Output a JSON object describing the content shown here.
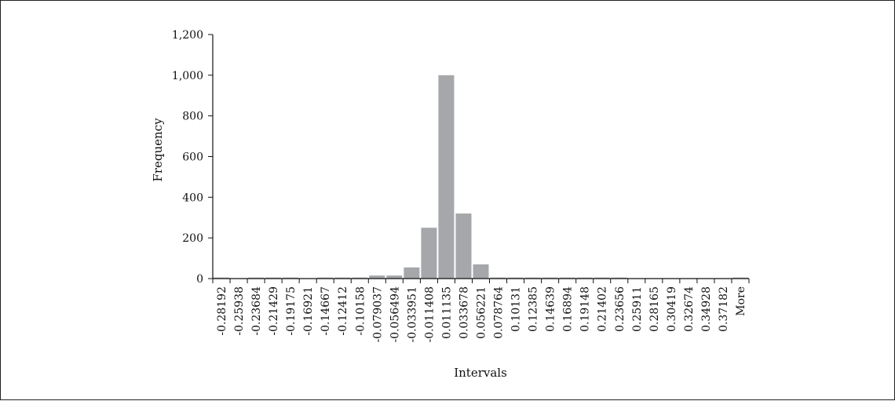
{
  "chart_data": {
    "type": "bar",
    "title": "",
    "xlabel": "Intervals",
    "ylabel": "Frequency",
    "ylim": [
      0,
      1200
    ],
    "yticks": [
      0,
      200,
      400,
      600,
      800,
      1000,
      1200
    ],
    "ytick_labels": [
      "0",
      "200",
      "400",
      "600",
      "800",
      "1,000",
      "1,200"
    ],
    "grid": false,
    "legend": "none",
    "categories": [
      "-0.28192",
      "-0.25938",
      "-0.23684",
      "-0.21429",
      "-0.19175",
      "-0.16921",
      "-0.14667",
      "-0.12412",
      "-0.10158",
      "-0.079037",
      "-0.056494",
      "-0.033951",
      "-0.011408",
      "0.011135",
      "0.033678",
      "0.056221",
      "0.078764",
      "0.10131",
      "0.12385",
      "0.14639",
      "0.16894",
      "0.19148",
      "0.21402",
      "0.23656",
      "0.25911",
      "0.28165",
      "0.30419",
      "0.32674",
      "0.34928",
      "0.37182",
      "More"
    ],
    "values": [
      5,
      0,
      5,
      5,
      5,
      0,
      5,
      5,
      5,
      15,
      15,
      55,
      250,
      1000,
      320,
      70,
      5,
      5,
      5,
      5,
      5,
      5,
      5,
      5,
      0,
      0,
      0,
      0,
      0,
      0,
      5
    ],
    "bar_color": "#a5a7aa",
    "axis_color": "#111111"
  }
}
